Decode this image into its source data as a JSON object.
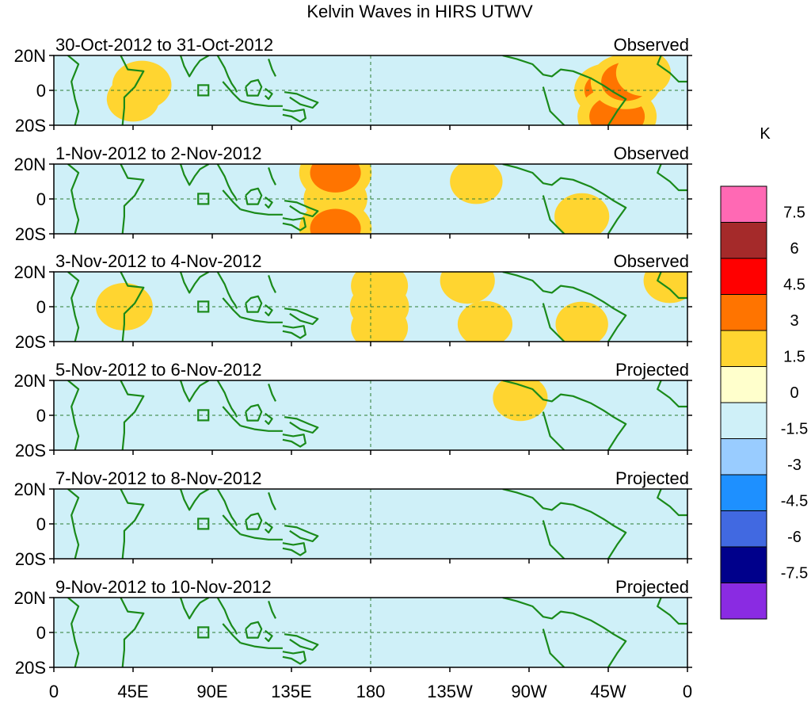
{
  "chart_data": {
    "type": "heatmap",
    "title": "Kelvin Waves in HIRS UTWV",
    "colorbar": {
      "unit": "K",
      "colors": [
        "#8a2be2",
        "#00008b",
        "#4169e1",
        "#1e90ff",
        "#99ccff",
        "#cff0f8",
        "#ffffcc",
        "#ffd530",
        "#ff7400",
        "#ff0000",
        "#a52a2a",
        "#ff69b4"
      ],
      "labels": [
        "-7.5",
        "-6",
        "-4.5",
        "-3",
        "-1.5",
        "0",
        "1.5",
        "3",
        "4.5",
        "6",
        "7.5"
      ],
      "boundaries": [
        -7.5,
        -6,
        -4.5,
        -3,
        -1.5,
        0,
        1.5,
        3,
        4.5,
        6,
        7.5
      ]
    },
    "x_ticks": [
      {
        "lon": 0,
        "label": "0"
      },
      {
        "lon": 45,
        "label": "45E"
      },
      {
        "lon": 90,
        "label": "90E"
      },
      {
        "lon": 135,
        "label": "135E"
      },
      {
        "lon": 180,
        "label": "180"
      },
      {
        "lon": 225,
        "label": "135W"
      },
      {
        "lon": 270,
        "label": "90W"
      },
      {
        "lon": 315,
        "label": "45W"
      },
      {
        "lon": 360,
        "label": "0"
      }
    ],
    "y_ticks": [
      {
        "lat": 20,
        "label": "20N"
      },
      {
        "lat": 0,
        "label": "0"
      },
      {
        "lat": -20,
        "label": "20S"
      }
    ],
    "lon_range": [
      0,
      360
    ],
    "lat_range": [
      -20,
      20
    ],
    "panels": [
      {
        "date_range": "30-Oct-2012 to 31-Oct-2012",
        "status": "Observed",
        "anomalies": [
          {
            "lon": 50,
            "lat": 3,
            "value": 2.2
          },
          {
            "lon": 45,
            "lat": -5,
            "value": 1.6
          },
          {
            "lon": 100,
            "lat": -5,
            "value": 0.8
          },
          {
            "lon": 25,
            "lat": 10,
            "value": -0.8
          },
          {
            "lon": 150,
            "lat": 0,
            "value": 1.0
          },
          {
            "lon": 210,
            "lat": 5,
            "value": -0.9
          },
          {
            "lon": 240,
            "lat": -10,
            "value": -0.8
          },
          {
            "lon": 275,
            "lat": 10,
            "value": -0.7
          },
          {
            "lon": 315,
            "lat": 0,
            "value": 3.0
          },
          {
            "lon": 320,
            "lat": -15,
            "value": 4.0
          },
          {
            "lon": 325,
            "lat": 5,
            "value": 3.2
          },
          {
            "lon": 335,
            "lat": 10,
            "value": 1.8
          }
        ]
      },
      {
        "date_range": "1-Nov-2012 to 2-Nov-2012",
        "status": "Observed",
        "anomalies": [
          {
            "lon": 160,
            "lat": 0,
            "value": 2.6
          },
          {
            "lon": 160,
            "lat": 15,
            "value": 3.4
          },
          {
            "lon": 160,
            "lat": -17,
            "value": 3.4
          },
          {
            "lon": 130,
            "lat": 0,
            "value": -1.0
          },
          {
            "lon": 190,
            "lat": 0,
            "value": 0.8
          },
          {
            "lon": 240,
            "lat": 10,
            "value": 1.6
          },
          {
            "lon": 275,
            "lat": 0,
            "value": 1.2
          },
          {
            "lon": 300,
            "lat": -10,
            "value": 1.8
          },
          {
            "lon": 340,
            "lat": 0,
            "value": 0.7
          },
          {
            "lon": 20,
            "lat": 5,
            "value": -0.8
          }
        ]
      },
      {
        "date_range": "3-Nov-2012 to 4-Nov-2012",
        "status": "Observed",
        "anomalies": [
          {
            "lon": 185,
            "lat": 0,
            "value": 2.2
          },
          {
            "lon": 185,
            "lat": 12,
            "value": 2.0
          },
          {
            "lon": 185,
            "lat": -12,
            "value": 2.0
          },
          {
            "lon": 40,
            "lat": 0,
            "value": 2.0
          },
          {
            "lon": 130,
            "lat": 0,
            "value": -1.0
          },
          {
            "lon": 235,
            "lat": 15,
            "value": 1.8
          },
          {
            "lon": 245,
            "lat": -10,
            "value": 1.8
          },
          {
            "lon": 300,
            "lat": -10,
            "value": 1.6
          },
          {
            "lon": 350,
            "lat": 15,
            "value": 1.6
          },
          {
            "lon": 90,
            "lat": 10,
            "value": -0.6
          }
        ]
      },
      {
        "date_range": "5-Nov-2012 to 6-Nov-2012",
        "status": "Projected",
        "anomalies": [
          {
            "lon": 265,
            "lat": 10,
            "value": 1.8
          },
          {
            "lon": 310,
            "lat": -15,
            "value": 1.4
          },
          {
            "lon": 220,
            "lat": 0,
            "value": 0.8
          },
          {
            "lon": 130,
            "lat": 0,
            "value": -0.9
          },
          {
            "lon": 60,
            "lat": 0,
            "value": 0.6
          },
          {
            "lon": 350,
            "lat": 15,
            "value": 1.2
          }
        ]
      },
      {
        "date_range": "7-Nov-2012 to 8-Nov-2012",
        "status": "Projected",
        "anomalies": [
          {
            "lon": 210,
            "lat": 5,
            "value": 0.6
          },
          {
            "lon": 300,
            "lat": 0,
            "value": 0.7
          },
          {
            "lon": 80,
            "lat": 0,
            "value": 0.5
          },
          {
            "lon": 150,
            "lat": -5,
            "value": -0.5
          },
          {
            "lon": 350,
            "lat": 15,
            "value": 0.8
          }
        ]
      },
      {
        "date_range": "9-Nov-2012 to 10-Nov-2012",
        "status": "Projected",
        "anomalies": [
          {
            "lon": 240,
            "lat": 5,
            "value": 0.5
          },
          {
            "lon": 110,
            "lat": 0,
            "value": 0.4
          },
          {
            "lon": 300,
            "lat": -10,
            "value": 0.5
          },
          {
            "lon": 350,
            "lat": 15,
            "value": 0.7
          }
        ]
      }
    ]
  }
}
